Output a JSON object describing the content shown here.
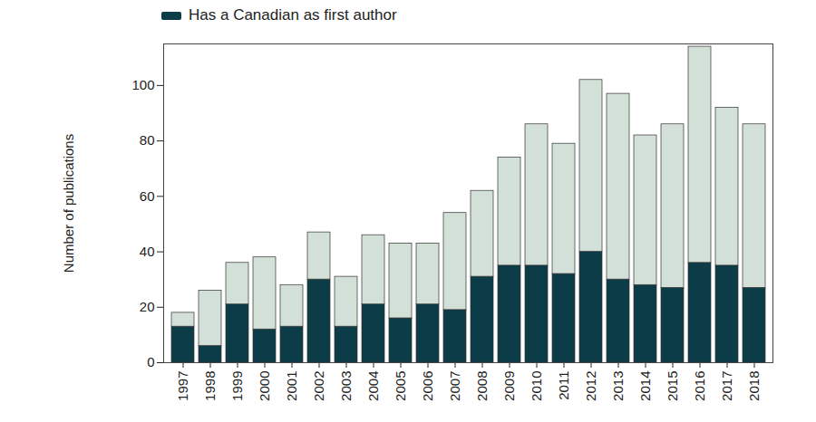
{
  "chart_data": {
    "type": "bar",
    "stacked": true,
    "y_label": "Number of publications",
    "categories": [
      "1997",
      "1998",
      "1999",
      "2000",
      "2001",
      "2002",
      "2003",
      "2004",
      "2005",
      "2006",
      "2007",
      "2008",
      "2009",
      "2010",
      "2011",
      "2012",
      "2013",
      "2014",
      "2015",
      "2016",
      "2017",
      "2018"
    ],
    "series": [
      {
        "name": "Has a Canadian as first author",
        "color": "#0b3c48",
        "values": [
          13,
          6,
          21,
          12,
          13,
          30,
          13,
          21,
          16,
          21,
          19,
          31,
          35,
          35,
          32,
          40,
          30,
          28,
          27,
          36,
          35,
          27
        ]
      },
      {
        "color": "#d2e0d8",
        "values": [
          5,
          20,
          15,
          26,
          15,
          17,
          18,
          25,
          27,
          22,
          35,
          31,
          39,
          51,
          47,
          62,
          67,
          54,
          59,
          78,
          57,
          59
        ]
      }
    ],
    "ylim": [
      0,
      115
    ],
    "yticks": [
      0,
      20,
      40,
      60,
      80,
      100
    ],
    "legend": "top-left"
  }
}
